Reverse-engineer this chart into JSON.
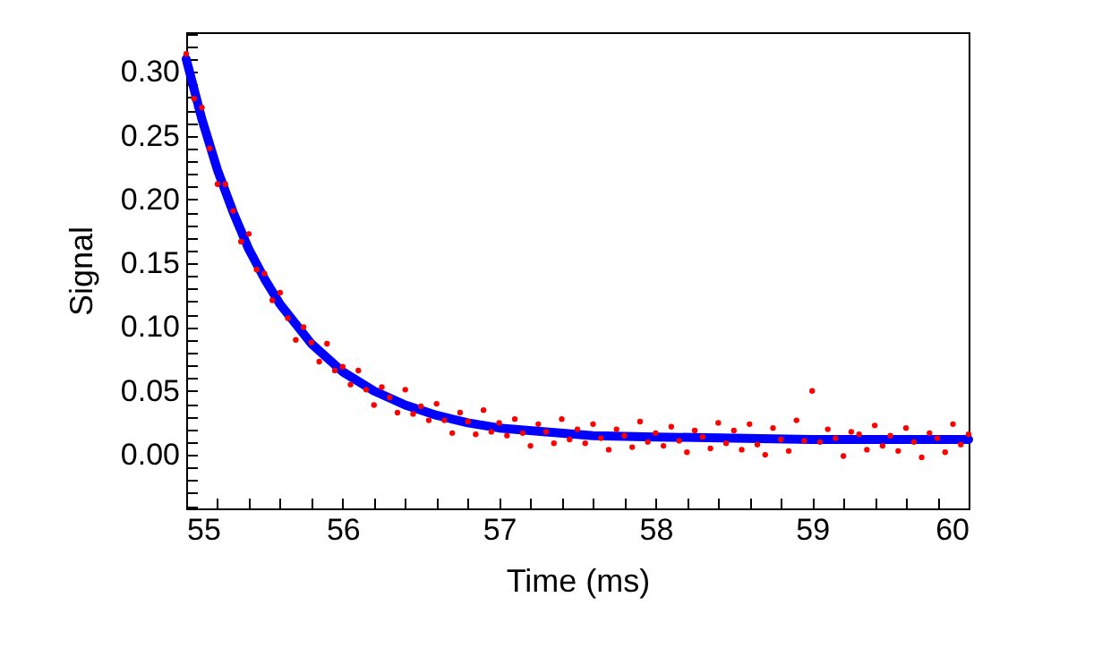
{
  "chart_data": {
    "type": "scatter",
    "xlabel": "Time (ms)",
    "ylabel": "Signal",
    "xlim": [
      55,
      60
    ],
    "ylim": [
      -0.042,
      0.331
    ],
    "xticks": [
      55,
      {
        "value": 55.2,
        "label": null
      },
      {
        "value": 55.4,
        "label": null
      },
      {
        "value": 55.6,
        "label": null
      },
      {
        "value": 55.8,
        "label": null
      },
      56,
      {
        "value": 56.2,
        "label": null
      },
      {
        "value": 56.4,
        "label": null
      },
      {
        "value": 56.6,
        "label": null
      },
      {
        "value": 56.8,
        "label": null
      },
      57,
      {
        "value": 57.2,
        "label": null
      },
      {
        "value": 57.4,
        "label": null
      },
      {
        "value": 57.6,
        "label": null
      },
      {
        "value": 57.8,
        "label": null
      },
      58,
      {
        "value": 58.2,
        "label": null
      },
      {
        "value": 58.4,
        "label": null
      },
      {
        "value": 58.6,
        "label": null
      },
      {
        "value": 58.8,
        "label": null
      },
      59,
      {
        "value": 59.2,
        "label": null
      },
      {
        "value": 59.4,
        "label": null
      },
      {
        "value": 59.6,
        "label": null
      },
      {
        "value": 59.8,
        "label": null
      },
      60
    ],
    "yticks": [
      {
        "value": -0.04,
        "label": null
      },
      {
        "value": -0.03,
        "label": null
      },
      {
        "value": -0.02,
        "label": null
      },
      {
        "value": -0.01,
        "label": null
      },
      {
        "value": 0,
        "label": "0.00"
      },
      {
        "value": 0.01,
        "label": null
      },
      {
        "value": 0.02,
        "label": null
      },
      {
        "value": 0.03,
        "label": null
      },
      {
        "value": 0.04,
        "label": null
      },
      {
        "value": 0.05,
        "label": "0.05"
      },
      {
        "value": 0.06,
        "label": null
      },
      {
        "value": 0.07,
        "label": null
      },
      {
        "value": 0.08,
        "label": null
      },
      {
        "value": 0.09,
        "label": null
      },
      {
        "value": 0.1,
        "label": "0.10"
      },
      {
        "value": 0.11,
        "label": null
      },
      {
        "value": 0.12,
        "label": null
      },
      {
        "value": 0.13,
        "label": null
      },
      {
        "value": 0.14,
        "label": null
      },
      {
        "value": 0.15,
        "label": "0.15"
      },
      {
        "value": 0.16,
        "label": null
      },
      {
        "value": 0.17,
        "label": null
      },
      {
        "value": 0.18,
        "label": null
      },
      {
        "value": 0.19,
        "label": null
      },
      {
        "value": 0.2,
        "label": "0.20"
      },
      {
        "value": 0.21,
        "label": null
      },
      {
        "value": 0.22,
        "label": null
      },
      {
        "value": 0.23,
        "label": null
      },
      {
        "value": 0.24,
        "label": null
      },
      {
        "value": 0.25,
        "label": "0.25"
      },
      {
        "value": 0.26,
        "label": null
      },
      {
        "value": 0.27,
        "label": null
      },
      {
        "value": 0.28,
        "label": null
      },
      {
        "value": 0.29,
        "label": null
      },
      {
        "value": 0.3,
        "label": "0.30"
      },
      {
        "value": 0.31,
        "label": null
      },
      {
        "value": 0.32,
        "label": null
      },
      {
        "value": 0.33,
        "label": null
      }
    ],
    "series": [
      {
        "type": "scatter",
        "color": "#ff0000",
        "x": [
          55,
          55.05,
          55.1,
          55.15,
          55.2,
          55.25,
          55.3,
          55.35,
          55.4,
          55.45,
          55.5,
          55.55,
          55.6,
          55.65,
          55.7,
          55.75,
          55.8,
          55.85,
          55.9,
          55.95,
          56,
          56.05,
          56.1,
          56.15,
          56.2,
          56.25,
          56.3,
          56.35,
          56.4,
          56.45,
          56.5,
          56.55,
          56.6,
          56.65,
          56.7,
          56.75,
          56.8,
          56.85,
          56.9,
          56.95,
          57,
          57.05,
          57.1,
          57.15,
          57.2,
          57.25,
          57.3,
          57.35,
          57.4,
          57.45,
          57.5,
          57.55,
          57.6,
          57.65,
          57.7,
          57.75,
          57.8,
          57.85,
          57.9,
          57.95,
          58,
          58.05,
          58.1,
          58.15,
          58.2,
          58.25,
          58.3,
          58.35,
          58.4,
          58.45,
          58.5,
          58.55,
          58.6,
          58.65,
          58.7,
          58.75,
          58.8,
          58.85,
          58.9,
          58.95,
          59,
          59.05,
          59.1,
          59.15,
          59.2,
          59.25,
          59.3,
          59.35,
          59.4,
          59.45,
          59.5,
          59.55,
          59.6,
          59.65,
          59.7,
          59.75,
          59.8,
          59.85,
          59.9,
          59.95,
          60
        ],
        "values": [
          0.314,
          0.279,
          0.272,
          0.24,
          0.212,
          0.212,
          0.191,
          0.167,
          0.173,
          0.145,
          0.142,
          0.121,
          0.127,
          0.107,
          0.09,
          0.1,
          0.088,
          0.073,
          0.087,
          0.066,
          0.069,
          0.055,
          0.066,
          0.051,
          0.039,
          0.053,
          0.045,
          0.033,
          0.051,
          0.032,
          0.038,
          0.027,
          0.04,
          0.027,
          0.017,
          0.033,
          0.026,
          0.016,
          0.035,
          0.018,
          0.025,
          0.015,
          0.028,
          0.017,
          0.007,
          0.024,
          0.018,
          0.009,
          0.028,
          0.012,
          0.02,
          0.009,
          0.024,
          0.013,
          0.004,
          0.02,
          0.015,
          0.006,
          0.026,
          0.01,
          0.017,
          0.007,
          0.022,
          0.011,
          0.002,
          0.019,
          0.014,
          0.005,
          0.025,
          0.009,
          0.019,
          0.004,
          0.024,
          0.008,
          0,
          0.021,
          0.012,
          0.003,
          0.027,
          0.011,
          0.05,
          0.01,
          0.02,
          0.013,
          -0.001,
          0.018,
          0.016,
          0.004,
          0.023,
          0.007,
          0.015,
          0.003,
          0.021,
          0.01,
          -0.002,
          0.017,
          0.013,
          0.002,
          0.024,
          0.008,
          0.016
        ]
      },
      {
        "type": "line",
        "color": "#0000ff",
        "x": [
          55,
          55.1,
          55.2,
          55.3,
          55.4,
          55.5,
          55.6,
          55.8,
          56,
          56.2,
          56.4,
          56.6,
          56.8,
          57,
          57.3,
          57.6,
          58,
          58.5,
          59,
          60
        ],
        "values": [
          0.31,
          0.263,
          0.223,
          0.19,
          0.161,
          0.138,
          0.118,
          0.087,
          0.065,
          0.05,
          0.039,
          0.031,
          0.025,
          0.021,
          0.018,
          0.015,
          0.014,
          0.013,
          0.012,
          0.012
        ]
      }
    ]
  }
}
